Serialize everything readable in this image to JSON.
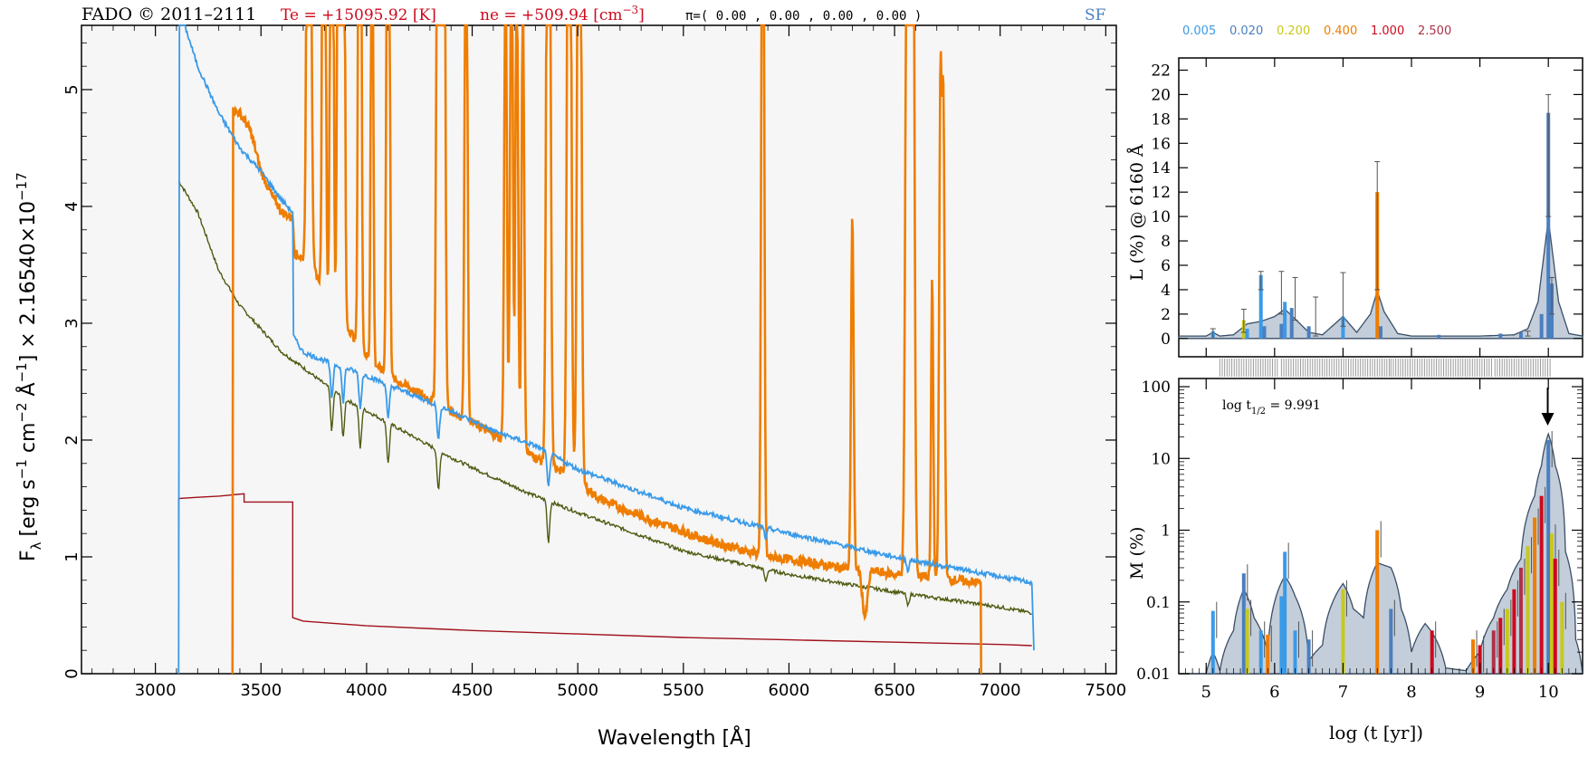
{
  "header": {
    "fado": "FADO © 2011–2111",
    "te": "Te = +15095.92 [K]",
    "ne_prefix": "ne = +509.94 [cm",
    "ne_exp": "−3",
    "ne_suffix": "]",
    "pi": "π=( 0.00 , 0.00 , 0.00 , 0.00 )",
    "sf": "SF"
  },
  "legend": {
    "items": [
      {
        "label": "0.005",
        "color": "#3a9ae8"
      },
      {
        "label": "0.020",
        "color": "#4a7fc0"
      },
      {
        "label": "0.200",
        "color": "#c8c81e"
      },
      {
        "label": "0.400",
        "color": "#ef7d00"
      },
      {
        "label": "1.000",
        "color": "#cc0a1e"
      },
      {
        "label": "2.500",
        "color": "#b03048"
      }
    ]
  },
  "chart_data": [
    {
      "type": "line",
      "xlabel": "Wavelength [Å]",
      "ylabel_main": "F",
      "ylabel_sub": "λ",
      "ylabel_rest": "[erg s",
      "ylabel_parts": [
        "−1",
        " cm",
        "−2",
        " Å",
        "−1",
        "] × 2.16540×10",
        "−17"
      ],
      "xlim": [
        2650,
        7550
      ],
      "ylim": [
        0,
        5.55
      ],
      "xticks": [
        3000,
        3500,
        4000,
        4500,
        5000,
        5500,
        6000,
        6500,
        7000,
        7500
      ],
      "yticks": [
        0,
        1,
        2,
        3,
        4,
        5
      ],
      "colors": {
        "observed": "#ef7d00",
        "total": "#3a9ae8",
        "stellar": "#4f5a10",
        "nebular": "#a0101a"
      },
      "series": [
        {
          "key": "stellar",
          "x": [
            3110,
            3200,
            3300,
            3400,
            3500,
            3600,
            3700,
            3800,
            3900,
            4000,
            4200,
            4400,
            4600,
            4800,
            5000,
            5500,
            6000,
            6500,
            7000,
            7150
          ],
          "y": [
            4.22,
            3.95,
            3.45,
            3.15,
            2.95,
            2.75,
            2.62,
            2.48,
            2.35,
            2.25,
            2.05,
            1.85,
            1.68,
            1.52,
            1.38,
            1.05,
            0.85,
            0.7,
            0.57,
            0.52
          ]
        },
        {
          "key": "nebular",
          "x": [
            3110,
            3110,
            3200,
            3300,
            3420,
            3420,
            3500,
            3650,
            3650,
            3700,
            4000,
            4500,
            5000,
            5500,
            6000,
            6500,
            7000,
            7150
          ],
          "y": [
            0.9,
            1.5,
            1.51,
            1.52,
            1.54,
            1.47,
            1.47,
            1.47,
            0.48,
            0.45,
            0.41,
            0.37,
            0.34,
            0.31,
            0.29,
            0.27,
            0.25,
            0.24
          ]
        },
        {
          "key": "total",
          "x": [
            3110,
            3110,
            3130,
            3200,
            3300,
            3400,
            3500,
            3600,
            3650,
            3650,
            3700,
            3800,
            3900,
            4000,
            4200,
            4400,
            4600,
            4800,
            5000,
            5500,
            6000,
            6500,
            7000,
            7150,
            7160
          ],
          "y": [
            0,
            5.6,
            5.6,
            5.2,
            4.8,
            4.5,
            4.3,
            4.05,
            3.95,
            2.9,
            2.75,
            2.68,
            2.62,
            2.55,
            2.4,
            2.25,
            2.08,
            1.95,
            1.75,
            1.42,
            1.2,
            1.0,
            0.83,
            0.78,
            0.2
          ]
        },
        {
          "key": "observed",
          "x": [
            3365,
            3365,
            3400,
            3450,
            3500,
            3550,
            3600,
            3650,
            3660,
            3700,
            3750,
            3800,
            3850,
            3900,
            3950,
            4000,
            4100,
            4200,
            4300,
            4400,
            4500,
            4600,
            4700,
            4800,
            4900,
            5000,
            5100,
            5200,
            5300,
            5400,
            5500,
            5600,
            5700,
            5800,
            5900,
            6000,
            6100,
            6200,
            6300,
            6400,
            6500,
            6600,
            6700,
            6800,
            6900,
            6910,
            6910
          ],
          "y": [
            0,
            4.82,
            4.8,
            4.65,
            4.3,
            4.1,
            3.95,
            3.9,
            3.6,
            3.55,
            3.45,
            3.3,
            3.1,
            3.0,
            2.85,
            2.72,
            2.55,
            2.45,
            2.35,
            2.25,
            2.15,
            2.05,
            1.95,
            1.85,
            1.75,
            1.65,
            1.5,
            1.42,
            1.35,
            1.28,
            1.22,
            1.15,
            1.1,
            1.05,
            1.0,
            0.98,
            0.95,
            0.92,
            0.9,
            0.88,
            0.85,
            0.84,
            0.82,
            0.8,
            0.78,
            0.75,
            0
          ]
        }
      ],
      "emission_lines": [
        {
          "x": 3727,
          "peak": 5.6,
          "w": 8
        },
        {
          "x": 3798,
          "peak": 5.6,
          "w": 6
        },
        {
          "x": 3835,
          "peak": 5.6,
          "w": 6
        },
        {
          "x": 3869,
          "peak": 5.6,
          "w": 6
        },
        {
          "x": 3889,
          "peak": 5.6,
          "w": 6
        },
        {
          "x": 3968,
          "peak": 5.6,
          "w": 6
        },
        {
          "x": 4026,
          "peak": 3.4,
          "w": 5
        },
        {
          "x": 4102,
          "peak": 5.6,
          "w": 6
        },
        {
          "x": 4340,
          "peak": 5.6,
          "w": 7
        },
        {
          "x": 4363,
          "peak": 5.6,
          "w": 7
        },
        {
          "x": 4471,
          "peak": 3.5,
          "w": 6
        },
        {
          "x": 4658,
          "peak": 2.7,
          "w": 6
        },
        {
          "x": 4686,
          "peak": 3.1,
          "w": 6
        },
        {
          "x": 4711,
          "peak": 2.7,
          "w": 6
        },
        {
          "x": 4740,
          "peak": 2.5,
          "w": 6
        },
        {
          "x": 4861,
          "peak": 5.6,
          "w": 8
        },
        {
          "x": 4959,
          "peak": 5.6,
          "w": 8
        },
        {
          "x": 5007,
          "peak": 5.6,
          "w": 8
        },
        {
          "x": 5876,
          "peak": 5.3,
          "w": 6
        },
        {
          "x": 6300,
          "peak": 1.9,
          "w": 6
        },
        {
          "x": 6563,
          "peak": 5.6,
          "w": 9
        },
        {
          "x": 6584,
          "peak": 5.6,
          "w": 8
        },
        {
          "x": 6678,
          "peak": 1.6,
          "w": 5
        },
        {
          "x": 6717,
          "peak": 2.6,
          "w": 6
        },
        {
          "x": 6731,
          "peak": 2.5,
          "w": 6
        }
      ]
    },
    {
      "type": "bar",
      "ylabel": "L (%) @ 6160 Å",
      "xlim": [
        4.6,
        10.5
      ],
      "ylim": [
        -1.5,
        23
      ],
      "yticks": [
        0,
        2,
        4,
        6,
        8,
        10,
        12,
        14,
        16,
        18,
        20,
        22
      ],
      "bars": [
        {
          "x": 5.1,
          "y": 0.6,
          "c": "#3a9ae8"
        },
        {
          "x": 5.55,
          "y": 1.5,
          "c": "#c8c81e"
        },
        {
          "x": 5.6,
          "y": 0.8,
          "c": "#3a9ae8"
        },
        {
          "x": 5.8,
          "y": 5.2,
          "c": "#3a9ae8"
        },
        {
          "x": 5.85,
          "y": 1.0,
          "c": "#4a7fc0"
        },
        {
          "x": 6.1,
          "y": 1.2,
          "c": "#4a7fc0"
        },
        {
          "x": 6.15,
          "y": 3.0,
          "c": "#3a9ae8"
        },
        {
          "x": 6.25,
          "y": 2.5,
          "c": "#4a7fc0"
        },
        {
          "x": 6.5,
          "y": 1.0,
          "c": "#4a7fc0"
        },
        {
          "x": 7.0,
          "y": 1.8,
          "c": "#3a9ae8"
        },
        {
          "x": 7.5,
          "y": 12.0,
          "c": "#ef7d00"
        },
        {
          "x": 7.55,
          "y": 1.0,
          "c": "#4a7fc0"
        },
        {
          "x": 8.4,
          "y": 0.3,
          "c": "#4a7fc0"
        },
        {
          "x": 9.3,
          "y": 0.4,
          "c": "#4a7fc0"
        },
        {
          "x": 9.6,
          "y": 0.5,
          "c": "#4a7fc0"
        },
        {
          "x": 9.9,
          "y": 2.0,
          "c": "#4a7fc0"
        },
        {
          "x": 10.0,
          "y": 18.5,
          "c": "#4a7fc0"
        },
        {
          "x": 10.05,
          "y": 4.5,
          "c": "#4a7fc0"
        }
      ],
      "envelope": {
        "x": [
          4.6,
          5.0,
          5.1,
          5.2,
          5.4,
          5.6,
          5.8,
          6.0,
          6.15,
          6.3,
          6.5,
          6.7,
          7.0,
          7.2,
          7.4,
          7.5,
          7.6,
          7.8,
          8.0,
          8.5,
          9.0,
          9.5,
          9.7,
          9.85,
          10.0,
          10.15,
          10.3,
          10.5
        ],
        "y": [
          0.2,
          0.2,
          0.5,
          0.2,
          0.3,
          1.2,
          1.4,
          1.8,
          2.4,
          1.6,
          0.5,
          0.3,
          1.8,
          0.5,
          2.0,
          3.9,
          2.2,
          0.4,
          0.2,
          0.2,
          0.2,
          0.3,
          0.8,
          3.0,
          9.8,
          3.0,
          0.4,
          0.2
        ]
      },
      "errorbars": [
        {
          "x": 5.1,
          "lo": 0,
          "hi": 0.8
        },
        {
          "x": 5.55,
          "lo": 0.5,
          "hi": 2.4
        },
        {
          "x": 5.8,
          "lo": 4.0,
          "hi": 5.5
        },
        {
          "x": 6.1,
          "lo": 2.0,
          "hi": 5.5
        },
        {
          "x": 6.3,
          "lo": 1.5,
          "hi": 5.0
        },
        {
          "x": 6.6,
          "lo": 0.2,
          "hi": 3.4
        },
        {
          "x": 7.0,
          "lo": 1.0,
          "hi": 5.4
        },
        {
          "x": 7.5,
          "lo": 4.0,
          "hi": 14.5
        },
        {
          "x": 9.7,
          "lo": 0.2,
          "hi": 0.6
        },
        {
          "x": 10.0,
          "lo": 10,
          "hi": 20
        },
        {
          "x": 10.05,
          "lo": 2,
          "hi": 5
        }
      ],
      "gray_segments": [
        [
          5.2,
          6.05
        ],
        [
          6.1,
          7.7
        ],
        [
          7.7,
          9.2
        ],
        [
          9.22,
          10.05
        ]
      ]
    },
    {
      "type": "bar",
      "ylabel": "M (%)",
      "xlabel": "log (t [yr])",
      "xlim": [
        4.6,
        10.5
      ],
      "ylim_log": [
        0.01,
        130
      ],
      "yticks": [
        0.01,
        0.1,
        1,
        10,
        100
      ],
      "ytick_labels": [
        "0.01",
        "0.1",
        "1",
        "10",
        "100"
      ],
      "xticks": [
        5,
        6,
        7,
        8,
        9,
        10
      ],
      "annotation_pre": "log t",
      "annotation_sub": "1/2",
      "annotation_post": " = 9.991",
      "arrow_x": 9.991,
      "envelope": {
        "x": [
          4.6,
          5.0,
          5.1,
          5.2,
          5.4,
          5.55,
          5.7,
          5.9,
          6.0,
          6.15,
          6.3,
          6.5,
          6.7,
          6.85,
          7.0,
          7.15,
          7.3,
          7.5,
          7.7,
          7.85,
          8.0,
          8.2,
          8.5,
          8.8,
          9.0,
          9.2,
          9.4,
          9.6,
          9.8,
          9.9,
          10.0,
          10.1,
          10.25,
          10.4,
          10.5
        ],
        "y": [
          0.01,
          0.01,
          0.02,
          0.011,
          0.04,
          0.15,
          0.06,
          0.02,
          0.1,
          0.23,
          0.12,
          0.015,
          0.025,
          0.1,
          0.18,
          0.08,
          0.06,
          0.35,
          0.3,
          0.08,
          0.02,
          0.05,
          0.012,
          0.011,
          0.02,
          0.06,
          0.15,
          0.4,
          3.0,
          8.0,
          22.0,
          8.0,
          0.5,
          0.03,
          0.01
        ]
      },
      "bars": [
        {
          "x": 5.1,
          "y": 0.075,
          "c": "#3a9ae8"
        },
        {
          "x": 5.55,
          "y": 0.25,
          "c": "#4a7fc0"
        },
        {
          "x": 5.6,
          "y": 0.08,
          "c": "#c8c81e"
        },
        {
          "x": 5.8,
          "y": 0.04,
          "c": "#3a9ae8"
        },
        {
          "x": 5.9,
          "y": 0.035,
          "c": "#ef7d00"
        },
        {
          "x": 6.1,
          "y": 0.12,
          "c": "#3a9ae8"
        },
        {
          "x": 6.15,
          "y": 0.5,
          "c": "#3a9ae8"
        },
        {
          "x": 6.3,
          "y": 0.04,
          "c": "#3a9ae8"
        },
        {
          "x": 6.5,
          "y": 0.03,
          "c": "#4a7fc0"
        },
        {
          "x": 7.0,
          "y": 0.15,
          "c": "#c8c81e"
        },
        {
          "x": 7.5,
          "y": 1.0,
          "c": "#ef7d00"
        },
        {
          "x": 7.7,
          "y": 0.08,
          "c": "#4a7fc0"
        },
        {
          "x": 8.3,
          "y": 0.04,
          "c": "#cc0a1e"
        },
        {
          "x": 8.9,
          "y": 0.03,
          "c": "#ef7d00"
        },
        {
          "x": 9.0,
          "y": 0.025,
          "c": "#cc0a1e"
        },
        {
          "x": 9.2,
          "y": 0.04,
          "c": "#b03048"
        },
        {
          "x": 9.3,
          "y": 0.06,
          "c": "#cc0a1e"
        },
        {
          "x": 9.4,
          "y": 0.08,
          "c": "#c8c81e"
        },
        {
          "x": 9.5,
          "y": 0.15,
          "c": "#cc0a1e"
        },
        {
          "x": 9.6,
          "y": 0.3,
          "c": "#b03048"
        },
        {
          "x": 9.7,
          "y": 0.6,
          "c": "#c8c81e"
        },
        {
          "x": 9.8,
          "y": 1.5,
          "c": "#ef7d00"
        },
        {
          "x": 9.9,
          "y": 3.0,
          "c": "#cc0a1e"
        },
        {
          "x": 10.0,
          "y": 18.0,
          "c": "#4a7fc0"
        },
        {
          "x": 10.05,
          "y": 0.9,
          "c": "#c8c81e"
        },
        {
          "x": 10.1,
          "y": 0.4,
          "c": "#cc0a1e"
        },
        {
          "x": 10.2,
          "y": 0.1,
          "c": "#c8c81e"
        }
      ]
    }
  ]
}
